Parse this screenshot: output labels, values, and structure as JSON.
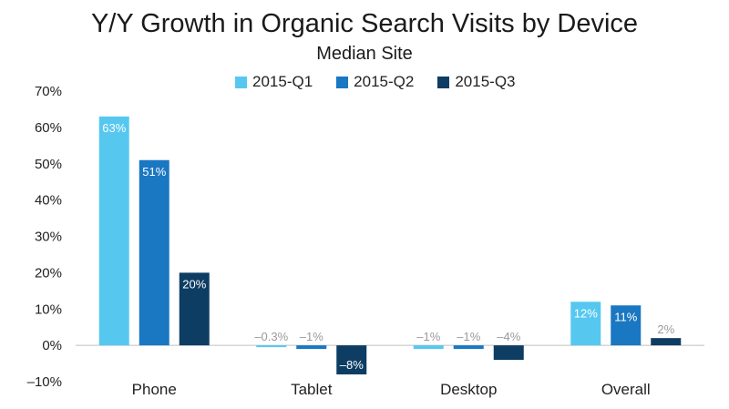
{
  "chart_data": {
    "type": "bar",
    "title": "Y/Y Growth in Organic Search Visits by Device",
    "subtitle": "Median Site",
    "categories": [
      "Phone",
      "Tablet",
      "Desktop",
      "Overall"
    ],
    "series": [
      {
        "name": "2015-Q1",
        "color": "#56c8f0",
        "values": [
          63,
          -0.3,
          -1,
          12
        ],
        "labels": [
          "63%",
          "–0.3%",
          "–1%",
          "12%"
        ]
      },
      {
        "name": "2015-Q2",
        "color": "#1a77c2",
        "values": [
          51,
          -1,
          -1,
          11
        ],
        "labels": [
          "51%",
          "–1%",
          "–1%",
          "11%"
        ]
      },
      {
        "name": "2015-Q3",
        "color": "#0d3d63",
        "values": [
          20,
          -8,
          -4,
          2
        ],
        "labels": [
          "20%",
          "–8%",
          "–4%",
          "2%"
        ]
      }
    ],
    "yticks": [
      "70%",
      "60%",
      "50%",
      "40%",
      "30%",
      "20%",
      "10%",
      "0%",
      "–10%"
    ],
    "ylim": [
      -10,
      70
    ],
    "legend": "top-center",
    "grid": false
  }
}
